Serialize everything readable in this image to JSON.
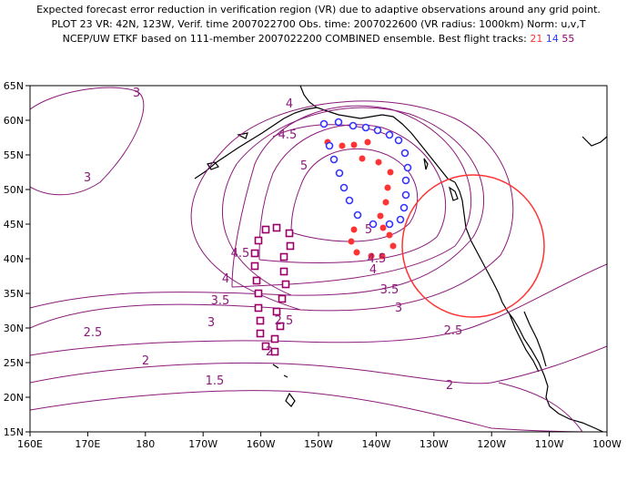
{
  "header": {
    "line1": "Expected forecast error reduction in verification region (VR) due to adaptive observations around any grid point.",
    "line2": "PLOT 23 VR: 42N, 123W, Verif. time 2007022700 Obs. time: 2007022600 (VR radius: 1000km) Norm: u,v,T",
    "line3_prefix": "NCEP/UW ETKF based on 111-member 2007022200 COMBINED ensemble.  Best flight tracks: ",
    "track_a": "21",
    "track_b": "14",
    "track_c": "55"
  },
  "map": {
    "lon_ticks": [
      "160E",
      "170E",
      "180",
      "170W",
      "160W",
      "150W",
      "140W",
      "130W",
      "120W",
      "110W",
      "100W"
    ],
    "lat_ticks": [
      "65N",
      "60N",
      "55N",
      "50N",
      "45N",
      "40N",
      "35N",
      "30N",
      "25N",
      "20N",
      "15N"
    ],
    "contour_labels": [
      "3",
      "4",
      "4.5",
      "5",
      "3",
      "4.5",
      "4",
      "3.5",
      "3",
      "4",
      "3.5",
      "3",
      "5",
      "4.5",
      "2.5",
      "2.5",
      "2.5",
      "2",
      "2",
      "1.5",
      "2"
    ],
    "colors": {
      "contour": "#8b1a7a",
      "track21": "#ff3333",
      "track14": "#3333ff",
      "track55": "#990066",
      "vr_circle": "#ff3333"
    }
  }
}
